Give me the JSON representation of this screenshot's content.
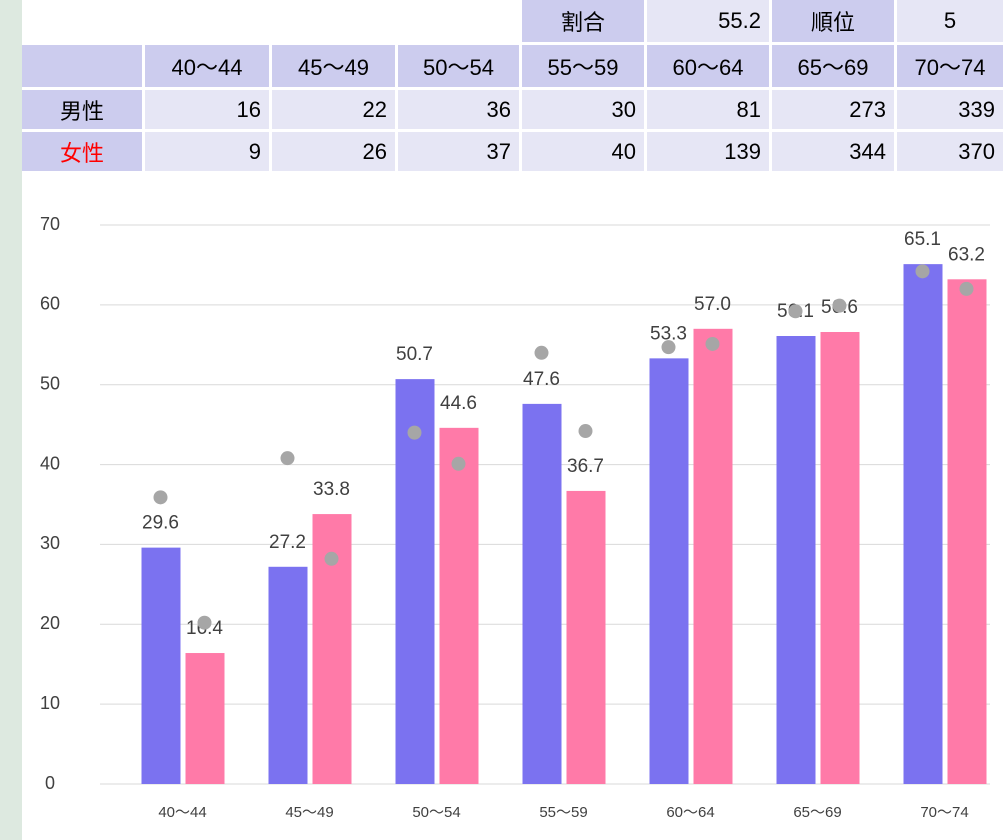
{
  "table": {
    "top": [
      [
        "割合",
        55.2
      ],
      [
        "順位",
        5
      ]
    ],
    "header": [
      "40〜44",
      "45〜49",
      "50〜54",
      "55〜59",
      "60〜64",
      "65〜69",
      "70〜74"
    ],
    "rows": [
      {
        "label": "男性",
        "color": "#000000",
        "values": [
          16,
          22,
          36,
          30,
          81,
          273,
          339
        ]
      },
      {
        "label": "女性",
        "color": "#ff0000",
        "values": [
          9,
          26,
          37,
          40,
          139,
          344,
          370
        ]
      }
    ]
  },
  "chart_data": {
    "type": "bar",
    "categories": [
      "40〜44",
      "45〜49",
      "50〜54",
      "55〜59",
      "60〜64",
      "65〜69",
      "70〜74"
    ],
    "series": [
      {
        "type": "bar",
        "color": "#7b72f0",
        "values": [
          29.6,
          27.2,
          50.7,
          47.6,
          53.3,
          56.1,
          65.1
        ],
        "value_labels": [
          "29.6",
          "27.2",
          "50.7",
          "47.6",
          "53.3",
          "56.1",
          "65.1"
        ]
      },
      {
        "type": "bar",
        "color": "#ff7aa8",
        "values": [
          16.4,
          33.8,
          44.6,
          36.7,
          57.0,
          56.6,
          63.2
        ],
        "value_labels": [
          "16.4",
          "33.8",
          "44.6",
          "36.7",
          "57.0",
          "56.6",
          "63.2"
        ]
      },
      {
        "type": "dot",
        "color": "#a6a6a6",
        "values": [
          35.9,
          40.8,
          44.0,
          54.0,
          54.7,
          59.2,
          64.2
        ]
      },
      {
        "type": "dot",
        "color": "#a6a6a6",
        "values": [
          20.2,
          28.2,
          40.1,
          44.2,
          55.1,
          59.9,
          62.0
        ]
      }
    ],
    "ylim": [
      0,
      70
    ],
    "yticks": [
      0,
      10,
      20,
      30,
      40,
      50,
      60,
      70
    ],
    "grid": true
  }
}
